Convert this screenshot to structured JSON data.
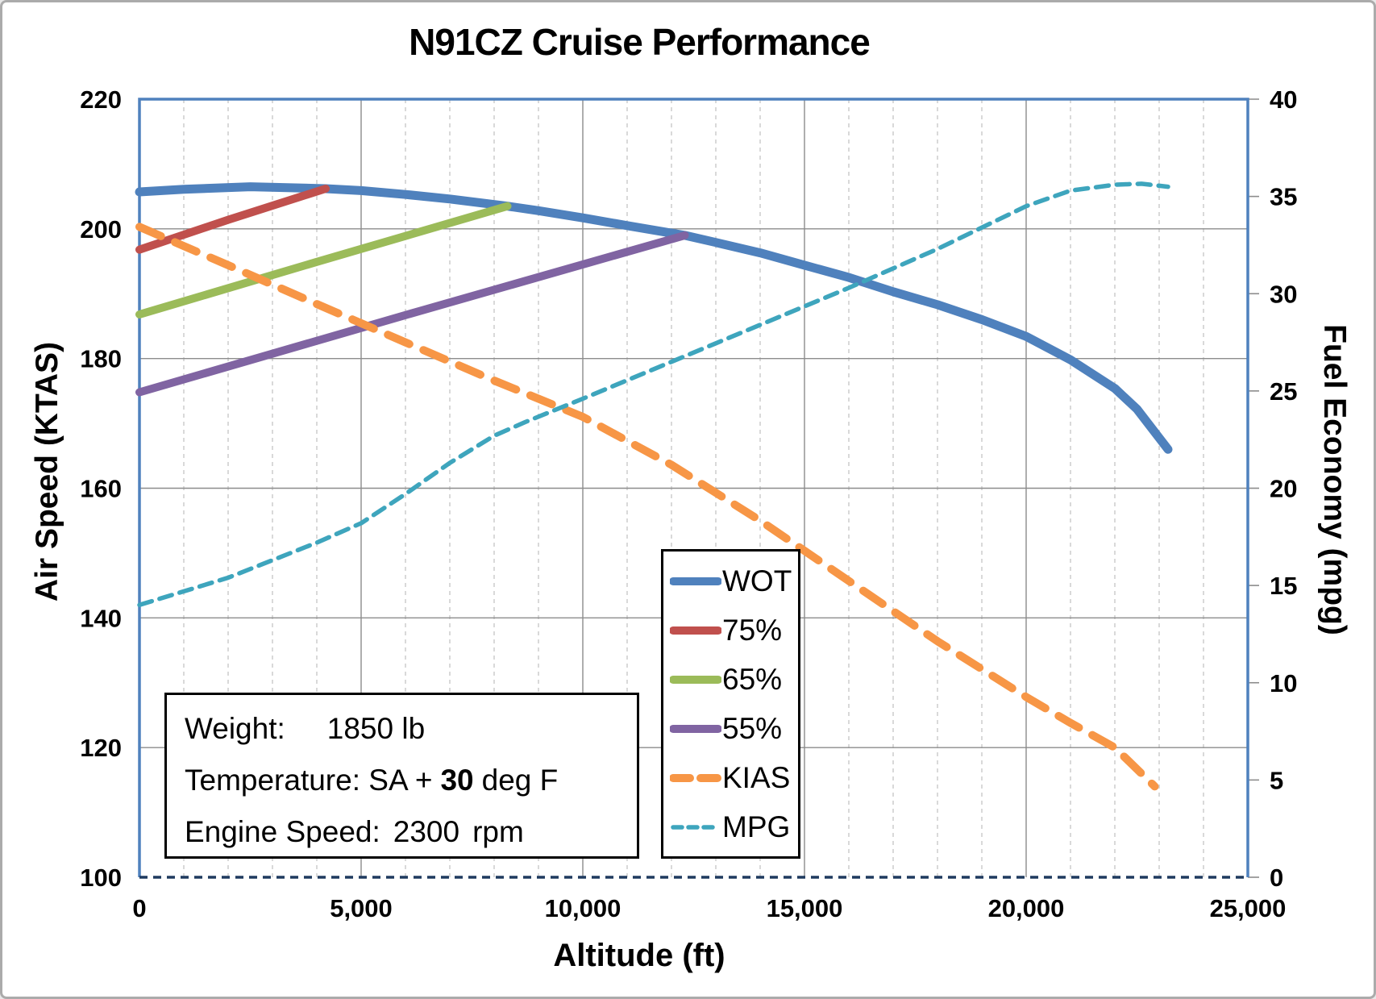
{
  "chart_data": {
    "type": "line",
    "title": "N91CZ Cruise Performance",
    "xlabel": "Altitude (ft)",
    "ylabel_left": "Air Speed (KTAS)",
    "ylabel_right": "Fuel Economy (mpg)",
    "x_range": [
      0,
      25000
    ],
    "x_major_ticks": [
      0,
      5000,
      10000,
      15000,
      20000,
      25000
    ],
    "x_tick_labels": [
      "0",
      "5,000",
      "10,000",
      "15,000",
      "20,000",
      "25,000"
    ],
    "x_minor_step": 1000,
    "y_left_range": [
      100,
      220
    ],
    "y_left_ticks": [
      100,
      120,
      140,
      160,
      180,
      200,
      220
    ],
    "y_left_tick_labels": [
      "100",
      "120",
      "140",
      "160",
      "180",
      "200",
      "220"
    ],
    "y_right_range": [
      0,
      40
    ],
    "y_right_ticks": [
      0,
      5,
      10,
      15,
      20,
      25,
      30,
      35,
      40
    ],
    "y_right_tick_labels": [
      "0",
      "5",
      "10",
      "15",
      "20",
      "25",
      "30",
      "35",
      "40"
    ],
    "grid": {
      "horizontal_lines_ktas": [
        120,
        140,
        160,
        180,
        200
      ],
      "vertical_major_ft": [
        5000,
        10000,
        15000,
        20000
      ],
      "vertical_minor_every_ft": 1000,
      "minor_style": "dashed",
      "major_style": "solid"
    },
    "legend_position": "center-right-box",
    "colors": {
      "plot_border": "#4f81bd",
      "bottom_axis_dashed": "#1f3a5f",
      "grid_major": "#8c8c8c",
      "grid_minor": "#c9c9c9",
      "text": "#000000"
    },
    "series": [
      {
        "name": "WOT",
        "axis": "left",
        "color": "#4f81bd",
        "style": "solid",
        "width": 11,
        "points": [
          [
            0,
            205.7
          ],
          [
            1000,
            206.1
          ],
          [
            2500,
            206.5
          ],
          [
            4200,
            206.2
          ],
          [
            5000,
            205.9
          ],
          [
            6000,
            205.3
          ],
          [
            7000,
            204.6
          ],
          [
            8300,
            203.5
          ],
          [
            9000,
            202.8
          ],
          [
            10000,
            201.7
          ],
          [
            11000,
            200.5
          ],
          [
            12300,
            199.0
          ],
          [
            13000,
            197.9
          ],
          [
            14000,
            196.3
          ],
          [
            15000,
            194.4
          ],
          [
            16000,
            192.5
          ],
          [
            17000,
            190.3
          ],
          [
            18000,
            188.3
          ],
          [
            19000,
            186.0
          ],
          [
            20000,
            183.4
          ],
          [
            21000,
            179.8
          ],
          [
            22000,
            175.4
          ],
          [
            22500,
            172.2
          ],
          [
            23200,
            166.0
          ]
        ]
      },
      {
        "name": "75%",
        "axis": "left",
        "color": "#c0504d",
        "style": "solid",
        "width": 10,
        "points": [
          [
            0,
            196.8
          ],
          [
            2000,
            201.4
          ],
          [
            4200,
            206.2
          ]
        ]
      },
      {
        "name": "65%",
        "axis": "left",
        "color": "#9bbb59",
        "style": "solid",
        "width": 10,
        "points": [
          [
            0,
            186.8
          ],
          [
            4000,
            194.9
          ],
          [
            8300,
            203.5
          ]
        ]
      },
      {
        "name": "55%",
        "axis": "left",
        "color": "#8064a2",
        "style": "solid",
        "width": 10,
        "points": [
          [
            0,
            174.8
          ],
          [
            6000,
            186.7
          ],
          [
            12300,
            199.0
          ]
        ]
      },
      {
        "name": "KIAS",
        "axis": "left",
        "color": "#f79646",
        "style": "dashed",
        "width": 10,
        "dash": [
          29,
          19
        ],
        "points": [
          [
            0,
            200.3
          ],
          [
            2000,
            194.4
          ],
          [
            4000,
            188.4
          ],
          [
            6000,
            182.5
          ],
          [
            8000,
            176.6
          ],
          [
            10000,
            171.0
          ],
          [
            12000,
            163.6
          ],
          [
            14000,
            155.0
          ],
          [
            16000,
            145.7
          ],
          [
            18000,
            136.4
          ],
          [
            20000,
            127.8
          ],
          [
            21000,
            123.8
          ],
          [
            22000,
            120.0
          ],
          [
            22900,
            114.0
          ]
        ]
      },
      {
        "name": "MPG",
        "axis": "right",
        "color": "#3ea5bd",
        "style": "dashed",
        "width": 5.5,
        "dash": [
          16,
          10
        ],
        "points": [
          [
            0,
            14.0
          ],
          [
            2000,
            15.4
          ],
          [
            4000,
            17.2
          ],
          [
            5000,
            18.2
          ],
          [
            6000,
            19.7
          ],
          [
            7000,
            21.3
          ],
          [
            8000,
            22.7
          ],
          [
            8700,
            23.4
          ],
          [
            10000,
            24.6
          ],
          [
            12000,
            26.5
          ],
          [
            14000,
            28.4
          ],
          [
            16000,
            30.3
          ],
          [
            18000,
            32.3
          ],
          [
            20000,
            34.5
          ],
          [
            21000,
            35.3
          ],
          [
            22000,
            35.6
          ],
          [
            22600,
            35.65
          ],
          [
            23200,
            35.5
          ]
        ]
      }
    ]
  },
  "annotation": {
    "weight_label": "Weight:",
    "weight_value": "1850 lb",
    "temp_prefix": "Temperature: SA +",
    "temp_bold": "30",
    "temp_suffix": "deg F",
    "engine_label": "Engine Speed:",
    "engine_value": "2300",
    "engine_unit": "rpm"
  }
}
